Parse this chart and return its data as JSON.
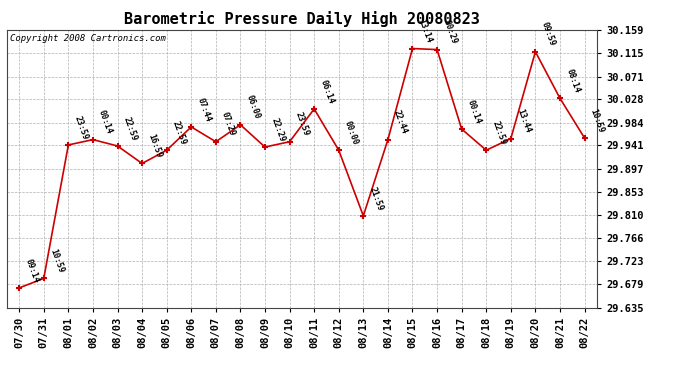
{
  "title": "Barometric Pressure Daily High 20080823",
  "copyright": "Copyright 2008 Cartronics.com",
  "x_labels": [
    "07/30",
    "07/31",
    "08/01",
    "08/02",
    "08/03",
    "08/04",
    "08/05",
    "08/06",
    "08/07",
    "08/08",
    "08/09",
    "08/10",
    "08/11",
    "08/12",
    "08/13",
    "08/14",
    "08/15",
    "08/16",
    "08/17",
    "08/18",
    "08/19",
    "08/20",
    "08/21",
    "08/22"
  ],
  "y_values": [
    29.672,
    29.69,
    29.942,
    29.952,
    29.94,
    29.907,
    29.932,
    29.976,
    29.948,
    29.98,
    29.938,
    29.948,
    30.01,
    29.932,
    29.808,
    29.952,
    30.124,
    30.122,
    29.972,
    29.932,
    29.954,
    30.118,
    30.03,
    29.955
  ],
  "point_labels": [
    "09:14",
    "10:59",
    "23:59",
    "00:14",
    "22:59",
    "16:59",
    "22:59",
    "07:44",
    "07:29",
    "06:00",
    "22:29",
    "23:59",
    "06:14",
    "00:00",
    "21:59",
    "22:44",
    "13:14",
    "00:29",
    "00:14",
    "22:59",
    "13:44",
    "09:59",
    "08:14",
    "10:59"
  ],
  "y_min": 29.635,
  "y_max": 30.159,
  "y_ticks": [
    29.635,
    29.679,
    29.723,
    29.766,
    29.81,
    29.853,
    29.897,
    29.941,
    29.984,
    30.028,
    30.071,
    30.115,
    30.159
  ],
  "line_color": "#cc0000",
  "marker_color": "#cc0000",
  "bg_color": "#ffffff",
  "grid_color": "#b0b0b0"
}
